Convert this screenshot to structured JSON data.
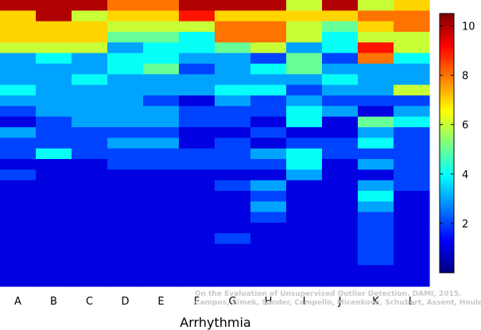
{
  "chart_data": {
    "type": "heatmap",
    "title": "",
    "xlabel": "Arrhythmia",
    "ylabel": "",
    "categories": [
      "A",
      "B",
      "C",
      "D",
      "E",
      "F",
      "G",
      "H",
      "I",
      "J",
      "K",
      "L"
    ],
    "rows_per_column": 27,
    "values": [
      [
        10,
        7,
        7,
        7,
        6,
        3,
        3,
        3,
        4,
        3,
        2,
        1,
        3,
        2,
        2,
        1,
        2,
        1,
        1,
        1,
        1,
        1,
        1,
        1,
        1,
        1,
        1
      ],
      [
        10,
        10,
        7,
        7,
        6,
        4,
        3,
        3,
        3,
        3,
        3,
        2,
        2,
        2,
        4,
        1,
        1,
        1,
        1,
        1,
        1,
        1,
        1,
        1,
        1,
        1,
        1
      ],
      [
        10,
        6,
        7,
        7,
        6,
        3,
        3,
        4,
        3,
        3,
        3,
        3,
        2,
        2,
        2,
        1,
        1,
        1,
        1,
        1,
        1,
        1,
        1,
        1,
        1,
        1,
        1
      ],
      [
        8,
        7,
        6,
        5,
        3,
        4,
        4,
        3,
        3,
        3,
        3,
        3,
        2,
        3,
        2,
        2,
        1,
        1,
        1,
        1,
        1,
        1,
        1,
        1,
        1,
        1,
        1
      ],
      [
        8,
        7,
        6,
        5,
        4,
        4,
        5,
        3,
        3,
        2,
        3,
        3,
        2,
        3,
        2,
        2,
        1,
        1,
        1,
        1,
        1,
        1,
        1,
        1,
        1,
        1,
        1
      ],
      [
        10,
        9,
        6,
        4,
        4,
        3,
        2,
        3,
        3,
        1,
        2,
        2,
        1,
        1,
        2,
        2,
        1,
        1,
        1,
        1,
        1,
        1,
        1,
        1,
        1,
        1,
        1
      ],
      [
        10,
        7,
        8,
        8,
        5,
        3,
        3,
        3,
        4,
        3,
        2,
        2,
        1,
        2,
        2,
        2,
        1,
        2,
        1,
        1,
        1,
        1,
        2,
        1,
        1,
        1,
        1
      ],
      [
        10,
        7,
        8,
        8,
        6,
        2,
        4,
        3,
        4,
        2,
        2,
        1,
        2,
        1,
        3,
        2,
        1,
        3,
        2,
        3,
        2,
        1,
        1,
        1,
        1,
        1,
        1
      ],
      [
        6,
        7,
        6,
        6,
        3,
        5,
        5,
        3,
        2,
        3,
        4,
        4,
        1,
        2,
        4,
        4,
        3,
        1,
        1,
        1,
        1,
        1,
        1,
        1,
        1,
        1,
        1
      ],
      [
        10,
        7,
        5,
        4,
        4,
        2,
        3,
        4,
        3,
        2,
        3,
        1,
        1,
        2,
        2,
        1,
        1,
        1,
        1,
        1,
        1,
        1,
        1,
        1,
        1,
        1,
        1
      ],
      [
        6,
        8,
        7,
        6,
        9,
        8,
        3,
        3,
        3,
        2,
        1,
        5,
        3,
        4,
        2,
        3,
        1,
        3,
        4,
        3,
        2,
        2,
        2,
        2,
        2,
        1,
        1
      ],
      [
        7,
        8,
        8,
        6,
        6,
        4,
        3,
        3,
        6,
        2,
        3,
        4,
        2,
        2,
        2,
        2,
        2,
        2,
        1,
        1,
        1,
        1,
        1,
        1,
        1,
        1,
        1
      ]
    ],
    "colorbar": {
      "ticks": [
        10,
        8,
        6,
        4,
        2
      ],
      "min": 0,
      "max": 10.5,
      "colormap": "jet"
    },
    "annotations": [
      "On the Evaluation of Unsupervised Outlier Detection. DAMI, 2015.",
      "Campos, Zimek, Sander, Campello, Micenková, Schubert, Assent, Houle"
    ],
    "grid": false
  }
}
